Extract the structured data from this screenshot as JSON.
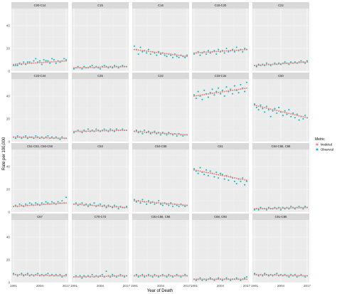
{
  "chart_data": {
    "type": "scatter",
    "layout": "facet-grid-5x4",
    "xlabel": "Year of Death",
    "ylabel": "Rate per 100,000",
    "xlim": [
      1991,
      2017
    ],
    "ylim": [
      0,
      55
    ],
    "x_ticks": [
      1991,
      2004,
      2017
    ],
    "x_tick_labels": [
      "1991",
      "2004",
      "2017"
    ],
    "y_ticks": [
      0,
      20,
      40
    ],
    "y_tick_labels": [
      "0",
      "20",
      "40"
    ],
    "grid": true,
    "legend": {
      "title": "Metric",
      "position": "right",
      "entries": [
        {
          "label": "Modeled",
          "color": "#F8766D"
        },
        {
          "label": "Observed",
          "color": "#00BFC4"
        }
      ]
    },
    "colors": {
      "modeled": "#F8766D",
      "observed": "#00BFC4",
      "panel_bg": "#EBEBEB",
      "strip_bg": "#D9D9D9",
      "grid_major": "#FFFFFF"
    },
    "panels": [
      {
        "label": "C00-C14",
        "modeled": [
          6,
          9
        ],
        "observed": [
          5,
          5,
          5,
          7,
          6,
          8,
          6,
          8,
          8,
          7,
          9,
          11,
          8,
          9,
          6,
          10,
          9,
          9,
          7,
          11,
          10,
          7,
          9,
          8,
          9,
          11,
          10
        ]
      },
      {
        "label": "C15",
        "modeled": [
          3,
          4
        ],
        "observed": [
          2,
          3,
          4,
          3,
          2,
          4,
          3,
          3,
          4,
          5,
          3,
          4,
          3,
          2,
          4,
          5,
          4,
          3,
          4,
          3,
          5,
          4,
          3,
          4,
          5,
          4,
          4
        ]
      },
      {
        "label": "C16",
        "modeled": [
          19,
          13
        ],
        "observed": [
          22,
          19,
          15,
          21,
          17,
          18,
          16,
          19,
          15,
          17,
          16,
          14,
          17,
          15,
          16,
          14,
          13,
          15,
          14,
          12,
          15,
          13,
          12,
          14,
          13,
          12,
          14
        ]
      },
      {
        "label": "C18-C20",
        "modeled": [
          16,
          19
        ],
        "observed": [
          15,
          16,
          17,
          14,
          16,
          17,
          15,
          18,
          16,
          17,
          18,
          15,
          19,
          17,
          18,
          16,
          20,
          17,
          18,
          19,
          17,
          21,
          18,
          19,
          17,
          20,
          19
        ]
      },
      {
        "label": "C22",
        "modeled": [
          5,
          8
        ],
        "observed": [
          5,
          4,
          6,
          5,
          6,
          5,
          7,
          6,
          5,
          6,
          7,
          6,
          7,
          6,
          7,
          8,
          7,
          6,
          8,
          7,
          8,
          7,
          8,
          9,
          8,
          7,
          9
        ]
      },
      {
        "label": "C23-C24",
        "modeled": [
          4,
          3
        ],
        "observed": [
          4,
          3,
          5,
          4,
          3,
          4,
          5,
          3,
          4,
          4,
          3,
          5,
          4,
          3,
          4,
          3,
          4,
          5,
          3,
          4,
          3,
          4,
          3,
          2,
          4,
          3,
          3
        ]
      },
      {
        "label": "C25",
        "modeled": [
          9,
          10
        ],
        "observed": [
          8,
          9,
          10,
          9,
          8,
          10,
          9,
          11,
          9,
          10,
          9,
          11,
          10,
          9,
          10,
          11,
          10,
          9,
          11,
          10,
          9,
          11,
          10,
          10,
          11,
          10,
          10
        ]
      },
      {
        "label": "C32",
        "modeled": [
          9,
          6
        ],
        "observed": [
          9,
          10,
          8,
          9,
          7,
          10,
          8,
          9,
          7,
          8,
          9,
          7,
          8,
          6,
          8,
          7,
          6,
          8,
          7,
          6,
          7,
          5,
          7,
          6,
          5,
          6,
          6
        ]
      },
      {
        "label": "C33-C34",
        "modeled": [
          40,
          47
        ],
        "observed": [
          41,
          38,
          44,
          40,
          37,
          45,
          42,
          39,
          43,
          46,
          41,
          44,
          47,
          42,
          45,
          40,
          48,
          44,
          46,
          42,
          49,
          45,
          43,
          50,
          47,
          44,
          52
        ]
      },
      {
        "label": "C50",
        "modeled": [
          32,
          21
        ],
        "observed": [
          33,
          30,
          28,
          32,
          29,
          26,
          31,
          28,
          22,
          27,
          29,
          25,
          30,
          26,
          23,
          27,
          24,
          28,
          22,
          25,
          21,
          24,
          19,
          22,
          20,
          23,
          21
        ]
      },
      {
        "label": "C51-C52, C56-C58",
        "modeled": [
          5,
          8
        ],
        "observed": [
          5,
          6,
          5,
          7,
          6,
          5,
          7,
          6,
          8,
          7,
          6,
          8,
          7,
          6,
          8,
          7,
          9,
          8,
          7,
          9,
          8,
          7,
          9,
          8,
          10,
          8,
          13
        ]
      },
      {
        "label": "C53",
        "modeled": [
          7,
          4
        ],
        "observed": [
          7,
          8,
          6,
          7,
          8,
          6,
          7,
          5,
          7,
          6,
          8,
          5,
          6,
          7,
          5,
          6,
          4,
          6,
          5,
          4,
          6,
          5,
          3,
          5,
          4,
          4,
          5
        ]
      },
      {
        "label": "C54-C55",
        "modeled": [
          10,
          6
        ],
        "observed": [
          11,
          9,
          10,
          8,
          11,
          9,
          7,
          10,
          8,
          9,
          7,
          8,
          10,
          7,
          6,
          8,
          7,
          6,
          8,
          5,
          7,
          6,
          5,
          7,
          6,
          5,
          6
        ]
      },
      {
        "label": "C61",
        "modeled": [
          37,
          28
        ],
        "observed": [
          38,
          36,
          34,
          39,
          35,
          33,
          37,
          32,
          36,
          34,
          31,
          35,
          30,
          34,
          33,
          29,
          32,
          28,
          31,
          30,
          27,
          25,
          29,
          27,
          30,
          24,
          27
        ]
      },
      {
        "label": "C64-C65, C68",
        "modeled": [
          3,
          4
        ],
        "observed": [
          2,
          3,
          2,
          4,
          3,
          3,
          2,
          4,
          3,
          3,
          4,
          3,
          4,
          2,
          4,
          3,
          4,
          3,
          5,
          4,
          3,
          4,
          5,
          4,
          3,
          5,
          4
        ]
      },
      {
        "label": "C67",
        "modeled": [
          7,
          6
        ],
        "observed": [
          8,
          7,
          6,
          7,
          8,
          6,
          7,
          8,
          6,
          7,
          6,
          7,
          8,
          6,
          7,
          6,
          7,
          8,
          6,
          7,
          6,
          7,
          6,
          7,
          5,
          6,
          7
        ]
      },
      {
        "label": "C70-C72",
        "modeled": [
          5,
          6
        ],
        "observed": [
          5,
          6,
          5,
          6,
          4,
          6,
          5,
          6,
          5,
          7,
          5,
          6,
          5,
          6,
          7,
          5,
          10,
          6,
          5,
          7,
          6,
          5,
          6,
          7,
          6,
          5,
          6
        ]
      },
      {
        "label": "C81-C86, C96",
        "modeled": [
          6,
          6
        ],
        "observed": [
          6,
          7,
          5,
          6,
          7,
          5,
          6,
          7,
          6,
          5,
          7,
          6,
          5,
          6,
          7,
          6,
          5,
          7,
          6,
          5,
          6,
          7,
          6,
          5,
          6,
          7,
          6
        ]
      },
      {
        "label": "C88, C90",
        "modeled": [
          3,
          3
        ],
        "observed": [
          3,
          2,
          3,
          4,
          2,
          3,
          2,
          3,
          4,
          3,
          2,
          3,
          4,
          3,
          2,
          3,
          4,
          3,
          2,
          3,
          3,
          4,
          3,
          2,
          3,
          4,
          5
        ]
      },
      {
        "label": "C91-C95",
        "modeled": [
          7,
          6
        ],
        "observed": [
          8,
          7,
          6,
          7,
          6,
          8,
          7,
          6,
          7,
          6,
          7,
          8,
          6,
          7,
          6,
          7,
          6,
          5,
          7,
          6,
          7,
          5,
          6,
          7,
          6,
          5,
          6
        ]
      }
    ]
  }
}
